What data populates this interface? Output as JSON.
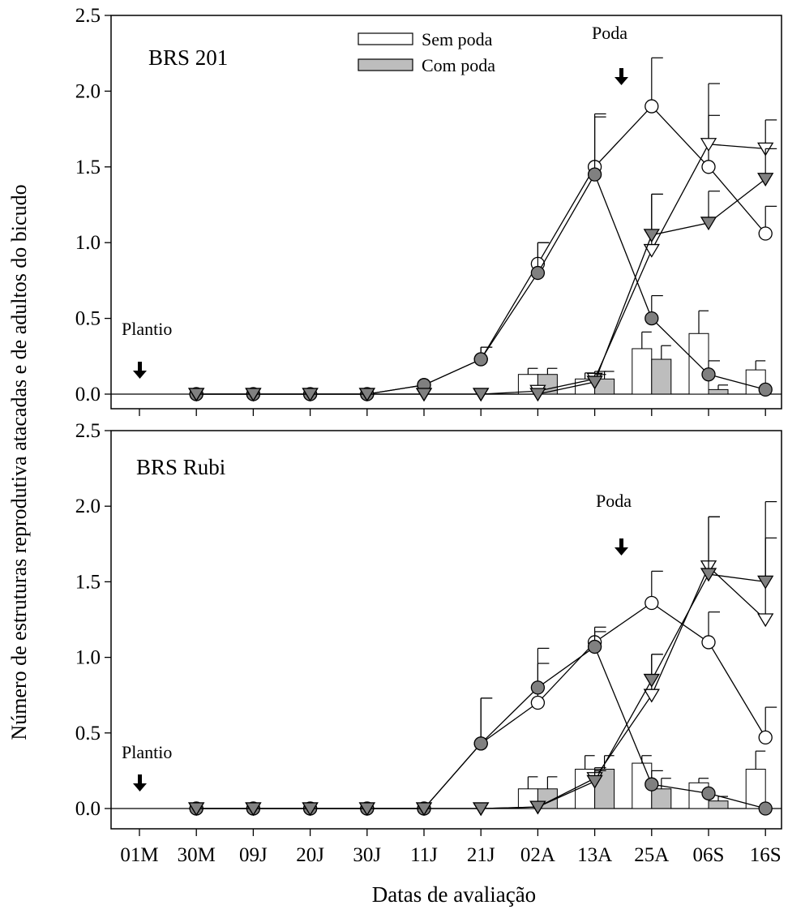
{
  "figure": {
    "ylabel": "Número de estruturas reprodutiva atacadas e de adultos do bicudo",
    "xlabel": "Datas de avaliação"
  },
  "legend": {
    "items": [
      {
        "label": "Sem poda",
        "fill": "#ffffff"
      },
      {
        "label": "Com poda",
        "fill": "#bdbdbd"
      }
    ]
  },
  "colors": {
    "open_marker": "#ffffff",
    "filled_marker": "#808080",
    "bar_sem_poda": "#ffffff",
    "bar_com_poda": "#bdbdbd",
    "axis": "#000000"
  },
  "chart_data": [
    {
      "type": "line",
      "title": "BRS 201",
      "categories": [
        "01M",
        "30M",
        "09J",
        "20J",
        "30J",
        "11J",
        "21J",
        "02A",
        "13A",
        "25A",
        "06S",
        "16S"
      ],
      "ylim": [
        0,
        2.5
      ],
      "yticks": [
        "0.0",
        "0.5",
        "1.0",
        "1.5",
        "2.0",
        "2.5"
      ],
      "annotations": [
        {
          "text": "Plantio",
          "category": "01M"
        },
        {
          "text": "Poda",
          "category_between": [
            "13A",
            "25A"
          ]
        }
      ],
      "series": [
        {
          "name": "Sem poda",
          "kind": "circle-open",
          "values": [
            null,
            0,
            0,
            0,
            0,
            0.06,
            0.23,
            0.86,
            1.5,
            1.9,
            1.5,
            1.06
          ],
          "errors": [
            null,
            0,
            0,
            0,
            0,
            0,
            0.08,
            0.14,
            0.35,
            0.32,
            0.34,
            0.18
          ]
        },
        {
          "name": "Com poda",
          "kind": "circle-filled",
          "values": [
            null,
            0,
            0,
            0,
            0,
            0.06,
            0.23,
            0.8,
            1.45,
            0.5,
            0.13,
            0.03
          ],
          "errors": [
            null,
            0,
            0,
            0,
            0,
            0,
            0.08,
            0.2,
            0.38,
            0.15,
            0.09,
            0
          ]
        },
        {
          "name": "Sem poda",
          "kind": "triangle-open",
          "values": [
            null,
            0,
            0,
            0,
            0,
            0,
            0,
            0.02,
            0.1,
            0.95,
            1.65,
            1.62
          ],
          "errors": [
            null,
            0,
            0,
            0,
            0,
            0,
            0,
            0,
            0.05,
            0.37,
            0.4,
            0.19
          ]
        },
        {
          "name": "Com poda",
          "kind": "triangle-filled",
          "values": [
            null,
            0,
            0,
            0,
            0,
            0,
            0,
            0,
            0.08,
            1.05,
            1.13,
            1.42
          ],
          "errors": [
            null,
            0,
            0,
            0,
            0,
            0,
            0,
            0,
            0.05,
            0.27,
            0.21,
            0.2
          ]
        },
        {
          "name": "Sem poda",
          "kind": "bar-open",
          "values": [
            null,
            null,
            null,
            null,
            null,
            null,
            null,
            0.13,
            0.1,
            0.3,
            0.4,
            0.16
          ],
          "errors": [
            null,
            null,
            null,
            null,
            null,
            null,
            null,
            0.04,
            0.04,
            0.11,
            0.15,
            0.06
          ]
        },
        {
          "name": "Com poda",
          "kind": "bar-gray",
          "values": [
            null,
            null,
            null,
            null,
            null,
            null,
            null,
            0.13,
            0.1,
            0.23,
            0.03,
            null
          ],
          "errors": [
            null,
            null,
            null,
            null,
            null,
            null,
            null,
            0.04,
            0.05,
            0.09,
            0.03,
            null
          ]
        }
      ]
    },
    {
      "type": "line",
      "title": "BRS Rubi",
      "categories": [
        "01M",
        "30M",
        "09J",
        "20J",
        "30J",
        "11J",
        "21J",
        "02A",
        "13A",
        "25A",
        "06S",
        "16S"
      ],
      "ylim": [
        0,
        2.5
      ],
      "yticks": [
        "0.0",
        "0.5",
        "1.0",
        "1.5",
        "2.0",
        "2.5"
      ],
      "annotations": [
        {
          "text": "Plantio",
          "category": "01M"
        },
        {
          "text": "Poda",
          "category_between": [
            "13A",
            "25A"
          ]
        }
      ],
      "series": [
        {
          "name": "Sem poda",
          "kind": "circle-open",
          "values": [
            null,
            0,
            0,
            0,
            0,
            0,
            0.43,
            0.7,
            1.1,
            1.36,
            1.1,
            0.47
          ],
          "errors": [
            null,
            0,
            0,
            0,
            0,
            0,
            0.3,
            0.26,
            0.1,
            0.21,
            0.2,
            0.2
          ]
        },
        {
          "name": "Com poda",
          "kind": "circle-filled",
          "values": [
            null,
            0,
            0,
            0,
            0,
            0,
            0.43,
            0.8,
            1.07,
            0.16,
            0.1,
            0.0
          ],
          "errors": [
            null,
            0,
            0,
            0,
            0,
            0,
            0.3,
            0.26,
            0.1,
            0.09,
            0,
            0
          ]
        },
        {
          "name": "Sem poda",
          "kind": "triangle-open",
          "values": [
            null,
            0,
            0,
            0,
            0,
            0,
            0,
            0.01,
            0.2,
            0.75,
            1.6,
            1.25
          ],
          "errors": [
            null,
            0,
            0,
            0,
            0,
            0,
            0,
            0,
            0.07,
            0.27,
            0.33,
            0.54
          ]
        },
        {
          "name": "Com poda",
          "kind": "triangle-filled",
          "values": [
            null,
            0,
            0,
            0,
            0,
            0,
            0,
            0.01,
            0.18,
            0.85,
            1.55,
            1.5
          ],
          "errors": [
            null,
            0,
            0,
            0,
            0,
            0,
            0,
            0,
            0.07,
            0.17,
            0.38,
            0.53
          ]
        },
        {
          "name": "Sem poda",
          "kind": "bar-open",
          "values": [
            null,
            null,
            null,
            null,
            null,
            null,
            null,
            0.13,
            0.26,
            0.3,
            0.17,
            0.26
          ],
          "errors": [
            null,
            null,
            null,
            null,
            null,
            null,
            null,
            0.08,
            0.09,
            0.05,
            0.03,
            0.12
          ]
        },
        {
          "name": "Com poda",
          "kind": "bar-gray",
          "values": [
            null,
            null,
            null,
            null,
            null,
            null,
            null,
            0.13,
            0.26,
            0.13,
            0.05,
            null
          ],
          "errors": [
            null,
            null,
            null,
            null,
            null,
            null,
            null,
            0.08,
            0.09,
            0.07,
            0.03,
            null
          ]
        }
      ]
    }
  ]
}
